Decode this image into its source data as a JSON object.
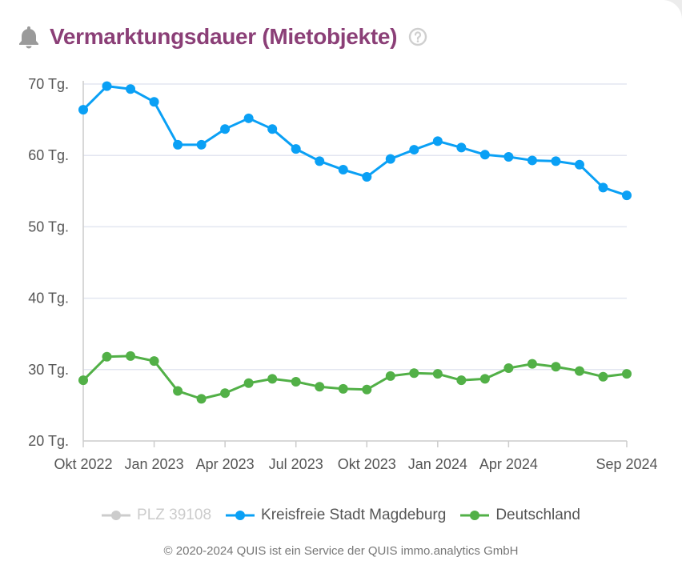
{
  "header": {
    "title": "Vermarktungsdauer (Mietobjekte)",
    "icon": "bell-icon",
    "help_icon": "question-circle-icon"
  },
  "colors": {
    "title": "#8b3f77",
    "magdeburg": "#0aa0f5",
    "deutschland": "#52b047",
    "plz": "#cccccc",
    "grid": "#e3e6f0",
    "axis": "#cccccc"
  },
  "chart_data": {
    "type": "line",
    "title": "Vermarktungsdauer (Mietobjekte)",
    "xlabel": "",
    "ylabel": "",
    "ylim": [
      20,
      70
    ],
    "yticks": [
      20,
      30,
      40,
      50,
      60,
      70
    ],
    "ytick_suffix": " Tg.",
    "grid": true,
    "legend_position": "bottom",
    "x": [
      "Okt 2022",
      "Nov 2022",
      "Dez 2022",
      "Jan 2023",
      "Feb 2023",
      "Mär 2023",
      "Apr 2023",
      "Mai 2023",
      "Jun 2023",
      "Jul 2023",
      "Aug 2023",
      "Sep 2023",
      "Okt 2023",
      "Nov 2023",
      "Dez 2023",
      "Jan 2024",
      "Feb 2024",
      "Mär 2024",
      "Apr 2024",
      "Mai 2024",
      "Jun 2024",
      "Jul 2024",
      "Aug 2024",
      "Sep 2024"
    ],
    "xtick_labels": [
      {
        "index": 0,
        "label": "Okt 2022"
      },
      {
        "index": 3,
        "label": "Jan 2023"
      },
      {
        "index": 6,
        "label": "Apr 2023"
      },
      {
        "index": 9,
        "label": "Jul 2023"
      },
      {
        "index": 12,
        "label": "Okt 2023"
      },
      {
        "index": 15,
        "label": "Jan 2024"
      },
      {
        "index": 18,
        "label": "Apr 2024"
      },
      {
        "index": 23,
        "label": "Sep 2024"
      }
    ],
    "series": [
      {
        "name": "PLZ 39108",
        "active": false,
        "color": "#cccccc",
        "values": []
      },
      {
        "name": "Kreisfreie Stadt Magdeburg",
        "active": true,
        "color": "#0aa0f5",
        "values": [
          66.4,
          69.7,
          69.3,
          67.5,
          61.5,
          61.5,
          63.7,
          65.2,
          63.7,
          60.9,
          59.2,
          58.0,
          57.0,
          59.5,
          60.8,
          62.0,
          61.1,
          60.1,
          59.8,
          59.3,
          59.2,
          58.7,
          55.5,
          54.4
        ]
      },
      {
        "name": "Deutschland",
        "active": true,
        "color": "#52b047",
        "values": [
          28.5,
          31.8,
          31.9,
          31.2,
          27.0,
          25.9,
          26.7,
          28.1,
          28.7,
          28.3,
          27.6,
          27.3,
          27.2,
          29.1,
          29.5,
          29.4,
          28.5,
          28.7,
          30.2,
          30.8,
          30.4,
          29.8,
          29.0,
          29.4
        ]
      }
    ]
  },
  "legend": {
    "items": [
      {
        "label": "PLZ 39108"
      },
      {
        "label": "Kreisfreie Stadt Magdeburg"
      },
      {
        "label": "Deutschland"
      }
    ]
  },
  "footer": {
    "text": "© 2020-2024 QUIS ist ein Service der QUIS immo.analytics GmbH"
  }
}
